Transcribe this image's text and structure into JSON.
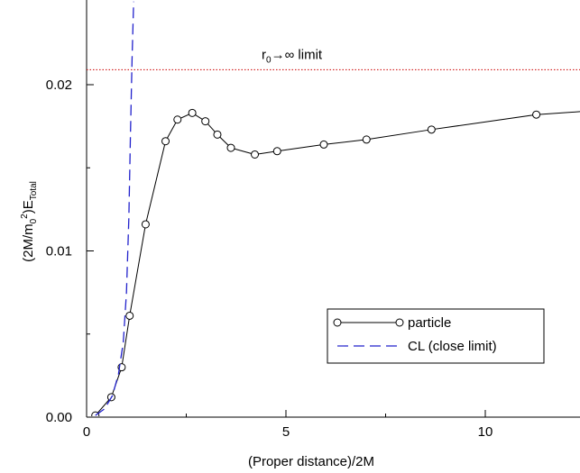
{
  "chart_data": {
    "type": "line",
    "title": "",
    "xlabel": "(Proper distance)/2M",
    "ylabel": {
      "parts": [
        {
          "text": "(2M/m",
          "style": "normal"
        },
        {
          "text": "0",
          "style": "sub"
        },
        {
          "text": "2",
          "style": "sup"
        },
        {
          "text": ")E",
          "style": "normal"
        },
        {
          "text": "Total",
          "style": "sub"
        }
      ]
    },
    "xlim": [
      0,
      12.5
    ],
    "ylim": [
      0,
      0.025
    ],
    "x_ticks": [
      {
        "value": 0,
        "label": "0"
      },
      {
        "value": 5,
        "label": "5"
      },
      {
        "value": 10,
        "label": "10"
      }
    ],
    "y_ticks": [
      {
        "value": 0,
        "label": "0.00"
      },
      {
        "value": 0.01,
        "label": "0.01"
      },
      {
        "value": 0.02,
        "label": "0.02"
      }
    ],
    "grid": false,
    "legend_position": "lower-right",
    "reference_line": {
      "y": 0.0209,
      "color": "#cc0000",
      "style": "dotted",
      "label_parts": [
        {
          "text": "r",
          "style": "normal"
        },
        {
          "text": "0",
          "style": "sub"
        },
        {
          "text": "→∞  limit",
          "style": "normal"
        }
      ]
    },
    "series": [
      {
        "name": "particle",
        "color": "#000000",
        "style": "solid",
        "marker": "open-circle",
        "points": [
          {
            "x": 0.22,
            "y": 0.0001
          },
          {
            "x": 0.62,
            "y": 0.0012
          },
          {
            "x": 0.88,
            "y": 0.003
          },
          {
            "x": 1.08,
            "y": 0.0061
          },
          {
            "x": 1.48,
            "y": 0.0116
          },
          {
            "x": 1.98,
            "y": 0.0166
          },
          {
            "x": 2.28,
            "y": 0.0179
          },
          {
            "x": 2.65,
            "y": 0.0183
          },
          {
            "x": 2.98,
            "y": 0.0178
          },
          {
            "x": 3.28,
            "y": 0.017
          },
          {
            "x": 3.62,
            "y": 0.0162
          },
          {
            "x": 4.22,
            "y": 0.0158
          },
          {
            "x": 4.78,
            "y": 0.016
          },
          {
            "x": 5.95,
            "y": 0.0164
          },
          {
            "x": 7.02,
            "y": 0.0167
          },
          {
            "x": 8.65,
            "y": 0.0173
          },
          {
            "x": 11.28,
            "y": 0.0182
          },
          {
            "x": 12.5,
            "y": 0.0184
          }
        ]
      },
      {
        "name": "CL (close limit)",
        "color": "#2222cc",
        "style": "dashed",
        "marker": "none",
        "points": [
          {
            "x": 0.22,
            "y": 0.0001
          },
          {
            "x": 0.45,
            "y": 0.0005
          },
          {
            "x": 0.65,
            "y": 0.0013
          },
          {
            "x": 0.8,
            "y": 0.0026
          },
          {
            "x": 0.92,
            "y": 0.0045
          },
          {
            "x": 1.0,
            "y": 0.0075
          },
          {
            "x": 1.06,
            "y": 0.012
          },
          {
            "x": 1.1,
            "y": 0.017
          },
          {
            "x": 1.14,
            "y": 0.0215
          },
          {
            "x": 1.18,
            "y": 0.025
          }
        ]
      }
    ]
  }
}
